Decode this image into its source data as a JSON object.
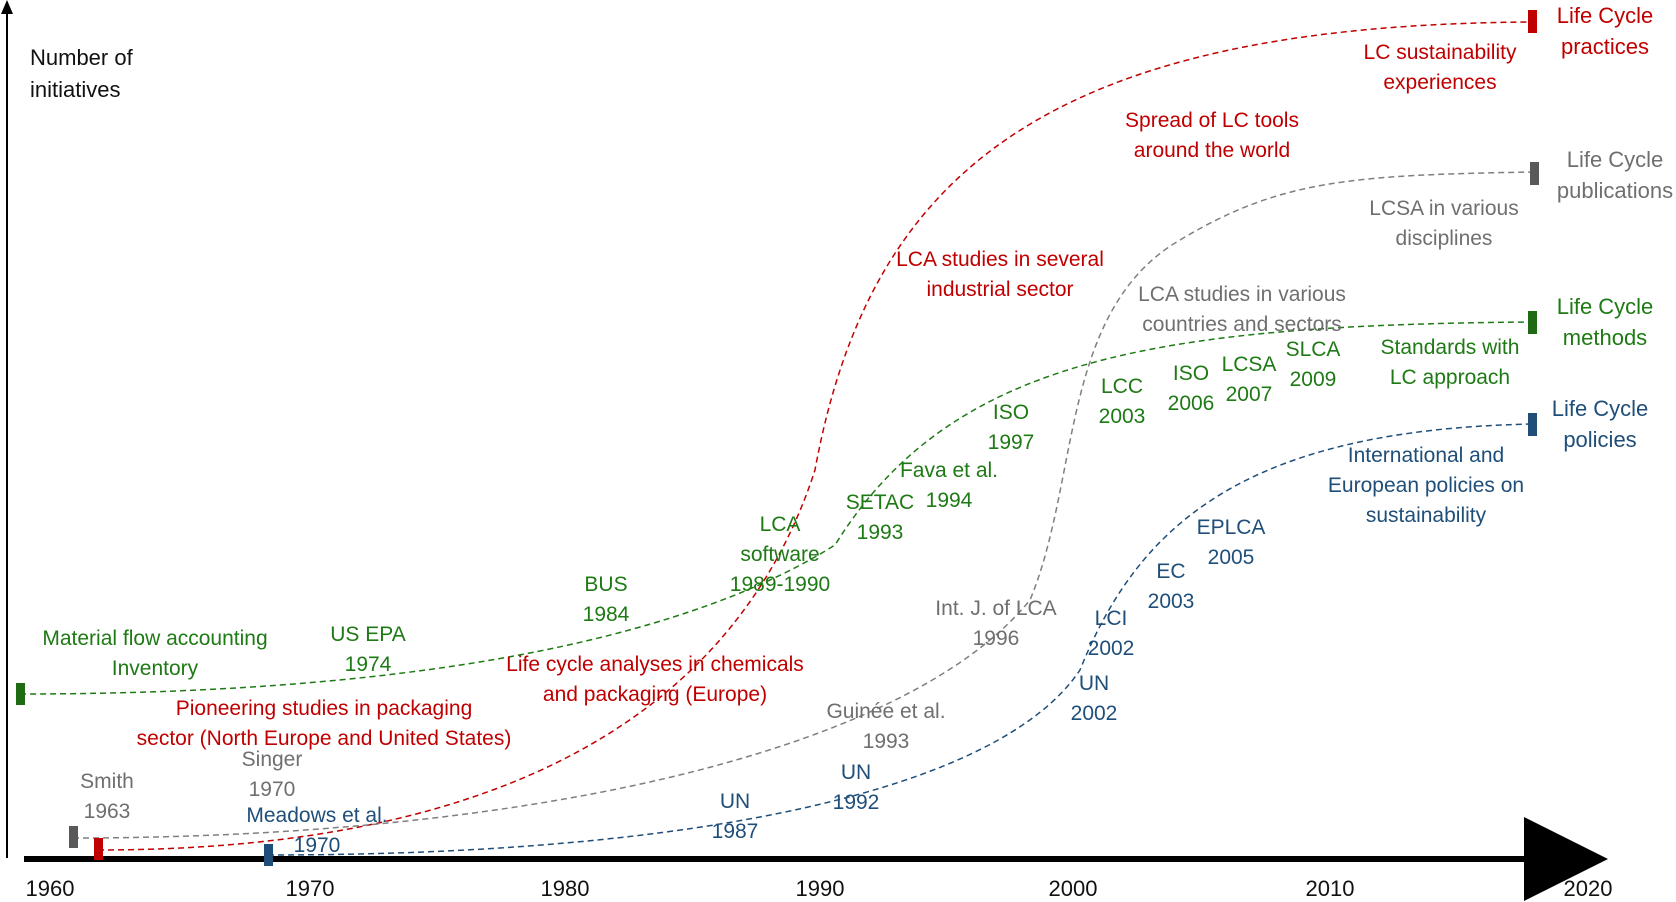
{
  "y_axis_label": "Number of\ninitiatives",
  "x_axis": {
    "ticks": [
      "1960",
      "1970",
      "1980",
      "1990",
      "2000",
      "2010",
      "2020"
    ]
  },
  "colors": {
    "practices": "#c00000",
    "publications": "#6f6f6f",
    "methods": "#1e7a14",
    "policies": "#1f4e79",
    "axis": "#000000"
  },
  "series": {
    "practices": {
      "end_label": "Life Cycle\npractices",
      "events": [
        "Pioneering studies in packaging\nsector (North Europe and United States)",
        "Life cycle analyses in chemicals\nand packaging (Europe)",
        "LCA studies in several\nindustrial sector",
        "Spread of LC tools\naround the world",
        "LC sustainability\nexperiences"
      ]
    },
    "publications": {
      "end_label": "Life Cycle\npublications",
      "events": [
        "Smith\n1963",
        "Singer\n1970",
        "Guinée et al.\n1993",
        "Int. J. of LCA\n1996",
        "LCA studies in various\ncountries and sectors",
        "LCSA in various\ndisciplines"
      ]
    },
    "methods": {
      "end_label": "Life Cycle\nmethods",
      "events": [
        "Material flow accounting\nInventory",
        "US EPA\n1974",
        "BUS\n1984",
        "LCA\nsoftware\n1989-1990",
        "SETAC\n1993",
        "Fava et al.\n1994",
        "ISO\n1997",
        "LCC\n2003",
        "ISO\n2006",
        "LCSA\n2007",
        "SLCA\n2009",
        "Standards with\nLC approach"
      ]
    },
    "policies": {
      "end_label": "Life Cycle\npolicies",
      "events": [
        "Meadows et al.\n1970",
        "UN\n1987",
        "UN\n1992",
        "UN\n2002",
        "LCI\n2002",
        "EC\n2003",
        "EPLCA\n2005",
        "International and\nEuropean policies on\nsustainability"
      ]
    }
  }
}
